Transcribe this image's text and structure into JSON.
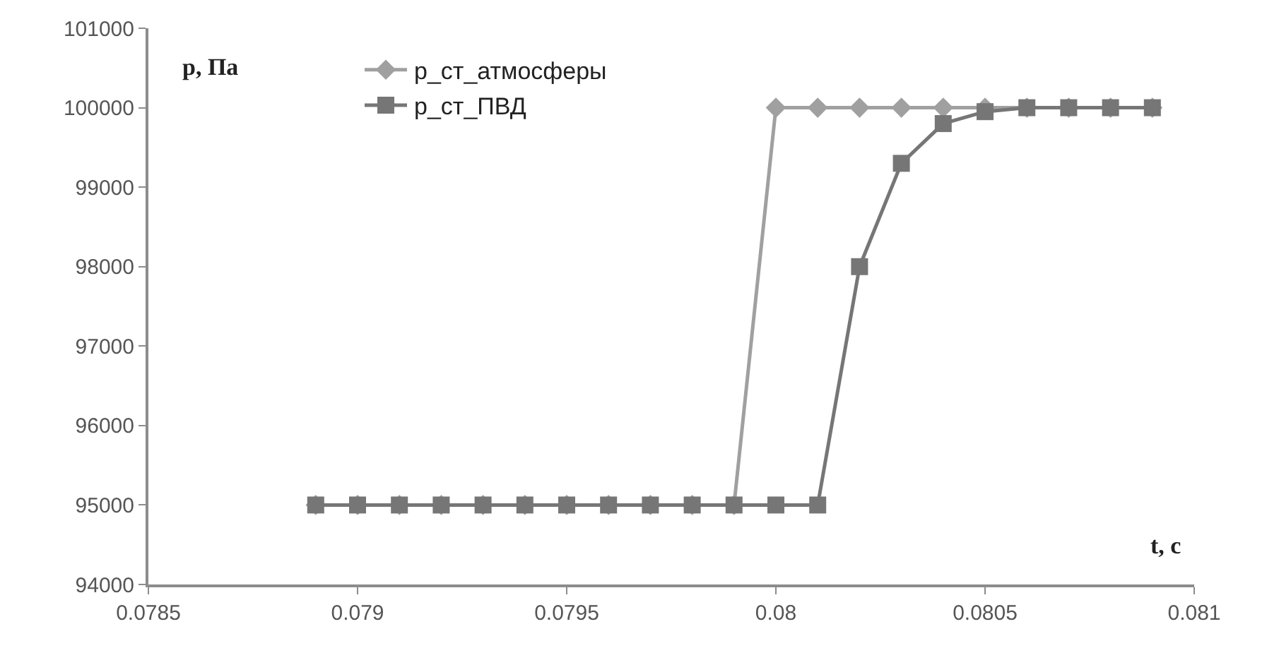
{
  "chart_data": {
    "type": "line",
    "x": [
      0.0789,
      0.079,
      0.0791,
      0.0792,
      0.0793,
      0.0794,
      0.0795,
      0.0796,
      0.0797,
      0.0798,
      0.0799,
      0.08,
      0.0801,
      0.0802,
      0.0803,
      0.0804,
      0.0805,
      0.0806,
      0.0807,
      0.0808,
      0.0809
    ],
    "series": [
      {
        "name": "p_ст_атмосферы",
        "color": "#a0a0a0",
        "marker": "diamond",
        "values": [
          95000,
          95000,
          95000,
          95000,
          95000,
          95000,
          95000,
          95000,
          95000,
          95000,
          95000,
          100000,
          100000,
          100000,
          100000,
          100000,
          100000,
          100000,
          100000,
          100000,
          100000
        ]
      },
      {
        "name": "p_ст_ПВД",
        "color": "#767676",
        "marker": "square",
        "values": [
          95000,
          95000,
          95000,
          95000,
          95000,
          95000,
          95000,
          95000,
          95000,
          95000,
          95000,
          95000,
          95000,
          98000,
          99300,
          99800,
          99950,
          100000,
          100000,
          100000,
          100000
        ]
      }
    ],
    "xlabel": "t, c",
    "ylabel": "p, Па",
    "xlim": [
      0.0785,
      0.081
    ],
    "xticks": [
      0.0785,
      0.079,
      0.0795,
      0.08,
      0.0805,
      0.081
    ],
    "ylim": [
      94000,
      101000
    ],
    "yticks": [
      94000,
      95000,
      96000,
      97000,
      98000,
      99000,
      100000,
      101000
    ],
    "legend": "top left",
    "line_style": "solid"
  }
}
